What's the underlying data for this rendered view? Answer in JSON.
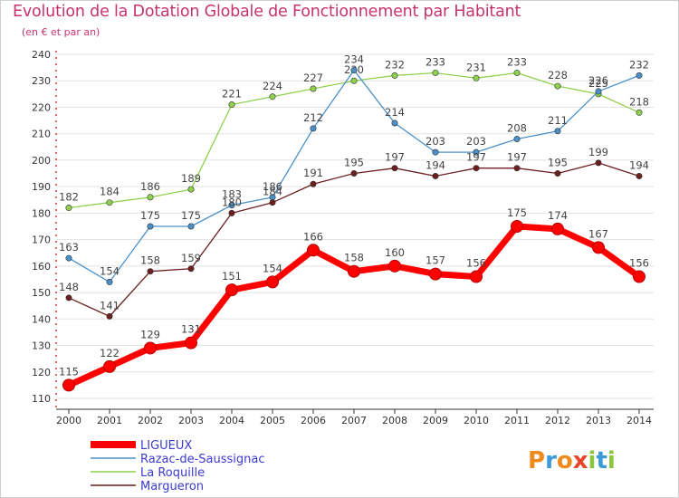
{
  "title": "Evolution de la Dotation Globale de Fonctionnement par Habitant",
  "subtitle": "(en € et par an)",
  "brand": "Proxiti",
  "chart_data": {
    "type": "line",
    "title": "Evolution de la Dotation Globale de Fonctionnement par Habitant",
    "subtitle": "(en € et par an)",
    "xlabel": "",
    "ylabel": "",
    "x": [
      "2000",
      "2001",
      "2002",
      "2003",
      "2004",
      "2005",
      "2006",
      "2007",
      "2008",
      "2009",
      "2010",
      "2011",
      "2012",
      "2013",
      "2014"
    ],
    "yticks": [
      110,
      120,
      130,
      140,
      150,
      160,
      170,
      180,
      190,
      200,
      210,
      220,
      230,
      240
    ],
    "ylim": [
      110,
      240
    ],
    "grid": "horizontal",
    "legend_position": "bottom-left",
    "series": [
      {
        "name": "LIGUEUX",
        "color": "#ff0000",
        "values": [
          115,
          122,
          129,
          131,
          151,
          154,
          166,
          158,
          160,
          157,
          156,
          175,
          174,
          167,
          156
        ]
      },
      {
        "name": "Razac-de-Saussignac",
        "color": "#4a90c8",
        "values": [
          163,
          154,
          175,
          175,
          183,
          186,
          212,
          234,
          214,
          203,
          203,
          208,
          211,
          226,
          232
        ]
      },
      {
        "name": "La Roquille",
        "color": "#8fd14f",
        "values": [
          182,
          184,
          186,
          189,
          221,
          224,
          227,
          230,
          232,
          233,
          231,
          233,
          228,
          225,
          218
        ]
      },
      {
        "name": "Margueron",
        "color": "#6b1f1f",
        "values": [
          148,
          141,
          158,
          159,
          180,
          184,
          191,
          195,
          197,
          194,
          197,
          197,
          195,
          199,
          194
        ]
      }
    ]
  }
}
